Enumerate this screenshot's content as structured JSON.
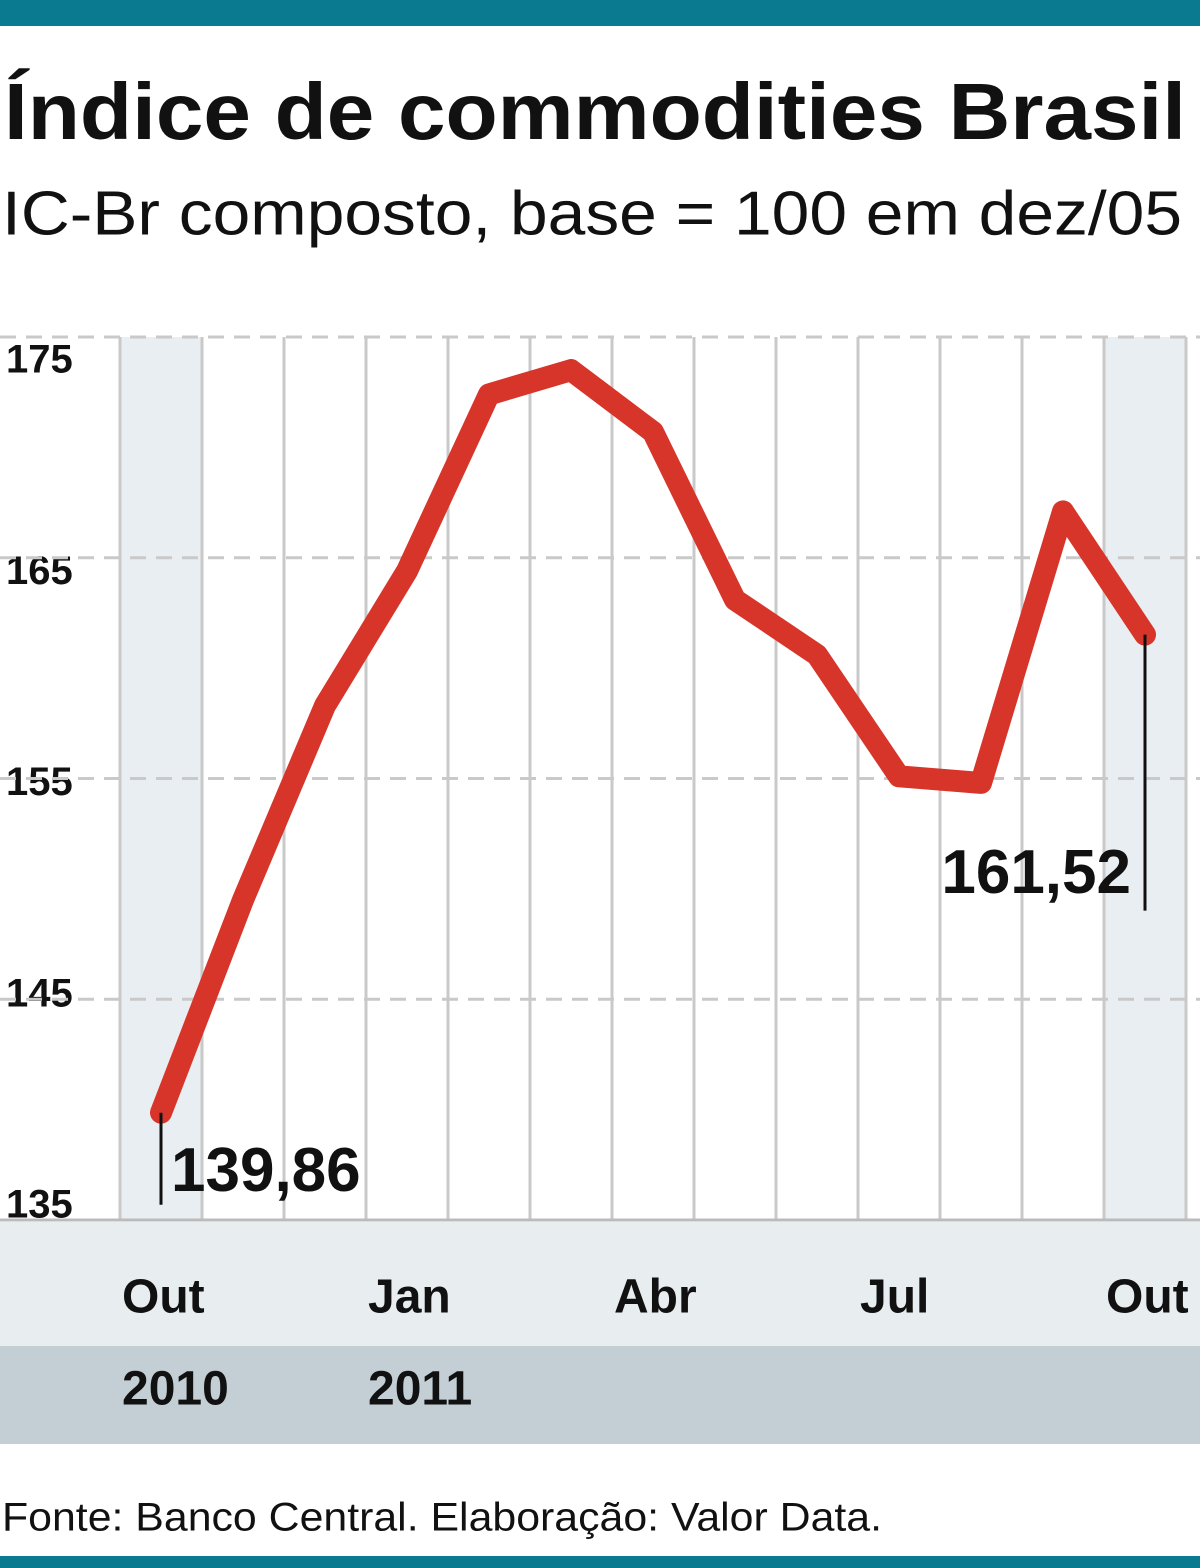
{
  "chart_data": {
    "type": "line",
    "title": "Índice de commodities Brasil",
    "subtitle": "IC-Br composto, base = 100 em dez/05",
    "source": "Fonte: Banco Central. Elaboração: Valor Data.",
    "categories": [
      "Out",
      null,
      null,
      "Jan",
      null,
      null,
      "Abr",
      null,
      null,
      "Jul",
      null,
      null,
      "Out"
    ],
    "years": [
      "2010",
      null,
      null,
      "2011",
      null,
      null,
      null,
      null,
      null,
      null,
      null,
      null,
      null
    ],
    "series": [
      {
        "name": "IC-Br",
        "color": "#d8352a",
        "values": [
          139.86,
          149.5,
          158.3,
          164.4,
          172.4,
          173.5,
          170.7,
          163.1,
          160.6,
          155.1,
          154.8,
          167.1,
          161.52
        ],
        "value_labels": [
          "139,86",
          null,
          null,
          null,
          null,
          null,
          null,
          null,
          null,
          null,
          null,
          null,
          "161,52"
        ]
      }
    ],
    "ylim": [
      135,
      175
    ],
    "yticks": [
      135,
      145,
      155,
      165,
      175
    ],
    "grid": true
  }
}
